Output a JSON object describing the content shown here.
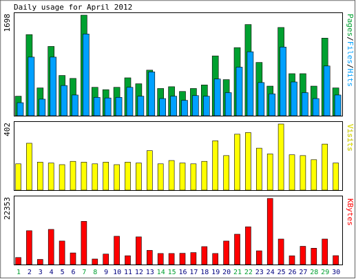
{
  "chart_data": {
    "type": "bar",
    "title": "Daily usage for April 2012",
    "categories": [
      "1",
      "2",
      "3",
      "4",
      "5",
      "6",
      "7",
      "8",
      "9",
      "10",
      "11",
      "12",
      "13",
      "14",
      "15",
      "16",
      "17",
      "18",
      "19",
      "20",
      "21",
      "22",
      "23",
      "24",
      "25",
      "26",
      "27",
      "28",
      "29",
      "30"
    ],
    "weekend_days": [
      "1",
      "7",
      "8",
      "14",
      "15",
      "21",
      "22",
      "28",
      "29"
    ],
    "colors": {
      "pages": "#00a030",
      "files": "#00a0ff",
      "hits": "#00a0ff",
      "visits": "#ffff00",
      "kbytes": "#ff0000",
      "weekday_label": "#000080",
      "weekend_label": "#00a030",
      "bar_outline": "#000000"
    },
    "panels": [
      {
        "id": "usage",
        "max_label": "1698",
        "ymax": 1698,
        "legend": [
          {
            "text": "Pages",
            "color": "#00a030"
          },
          {
            "text": "/",
            "color": "#000000"
          },
          {
            "text": "Files",
            "color": "#00a0ff"
          },
          {
            "text": "/",
            "color": "#000000"
          },
          {
            "text": "Hits",
            "color": "#00a0ff"
          }
        ],
        "series": [
          {
            "name": "Pages",
            "color": "#00a030",
            "values": [
              330,
              1370,
              470,
              1170,
              680,
              630,
              1698,
              480,
              440,
              480,
              640,
              540,
              770,
              460,
              490,
              410,
              460,
              520,
              1010,
              610,
              1150,
              1540,
              900,
              500,
              1490,
              710,
              710,
              500,
              1310,
              470
            ]
          },
          {
            "name": "Files",
            "color": "#00a0ff",
            "values": [
              220,
              990,
              280,
              990,
              510,
              350,
              1380,
              310,
              300,
              310,
              480,
              330,
              740,
              290,
              330,
              260,
              340,
              330,
              620,
              390,
              820,
              1080,
              560,
              370,
              1160,
              570,
              390,
              290,
              840,
              350
            ]
          }
        ]
      },
      {
        "id": "visits",
        "max_label": "402",
        "ymax": 402,
        "legend": [
          {
            "text": "Visits",
            "color": "#ffff00"
          }
        ],
        "series": [
          {
            "name": "Visits",
            "color": "#ffff00",
            "values": [
              160,
              285,
              170,
              165,
              155,
              175,
              170,
              160,
              170,
              155,
              170,
              165,
              240,
              160,
              180,
              165,
              160,
              175,
              300,
              210,
              340,
              350,
              255,
              220,
              402,
              215,
              210,
              185,
              280,
              165
            ]
          }
        ]
      },
      {
        "id": "kbytes",
        "max_label": "22353",
        "ymax": 22353,
        "legend": [
          {
            "text": "KBytes",
            "color": "#ff0000"
          }
        ],
        "series": [
          {
            "name": "KBytes",
            "color": "#ff0000",
            "values": [
              2380,
              11440,
              1740,
              11880,
              7950,
              3930,
              14600,
              1870,
              3550,
              9560,
              2970,
              9350,
              4790,
              3740,
              3740,
              3810,
              4050,
              6060,
              3740,
              7940,
              10250,
              12760,
              4640,
              22353,
              8620,
              2950,
              6170,
              5520,
              8620,
              3010
            ]
          }
        ]
      }
    ]
  }
}
